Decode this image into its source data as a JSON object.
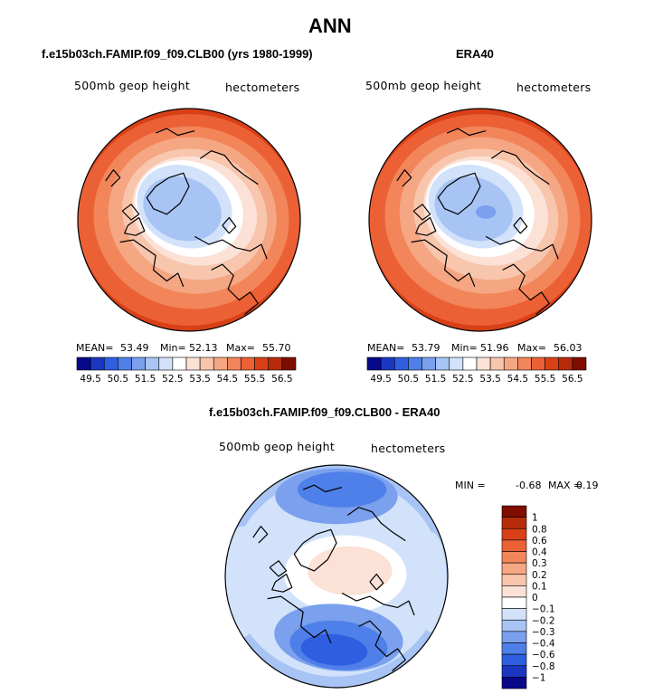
{
  "figure": {
    "title": "ANN",
    "diff_title": "f.e15b03ch.FAMIP.f09_f09.CLB00 - ERA40"
  },
  "panels": {
    "model": {
      "case_title": "f.e15b03ch.FAMIP.f09_f09.CLB00 (yrs 1980-1999)",
      "variable_label": "500mb geop height",
      "units_label": "hectometers",
      "mean_label": "MEAN=",
      "mean": "53.49",
      "min_label": "Min=",
      "min": "52.13",
      "max_label": "Max=",
      "max": "55.70"
    },
    "obs": {
      "case_title": "ERA40",
      "variable_label": "500mb geop height",
      "units_label": "hectometers",
      "mean_label": "MEAN=",
      "mean": "53.79",
      "min_label": "Min=",
      "min": "51.96",
      "max_label": "Max=",
      "max": "56.03"
    },
    "diff": {
      "variable_label": "500mb geop height",
      "units_label": "hectometers",
      "min_label": "MIN =",
      "min": "-0.68",
      "max_label": "MAX =",
      "max": "0.19"
    }
  },
  "chart_data": [
    {
      "type": "heatmap",
      "projection": "north-polar-stereographic",
      "title": "f.e15b03ch.FAMIP.f09_f09.CLB00 (yrs 1980-1999)",
      "field": "500mb geop height",
      "units": "hectometers",
      "mean": 53.49,
      "min": 52.13,
      "max": 55.7,
      "contour_levels": [
        49.5,
        50.0,
        50.5,
        51.0,
        51.5,
        52.0,
        52.5,
        53.0,
        53.5,
        54.0,
        54.5,
        55.0,
        55.5,
        56.0,
        56.5
      ],
      "colorbar_tick_labels": [
        "49.5",
        "50.5",
        "51.5",
        "52.5",
        "53.5",
        "54.5",
        "55.5",
        "56.5"
      ],
      "colors": [
        "#08088a",
        "#1a37c2",
        "#2f5fe0",
        "#4f7fe8",
        "#7aa0ee",
        "#a7c4f4",
        "#d1e2fa",
        "#ffffff",
        "#fbe1d6",
        "#f8c5ad",
        "#f5a682",
        "#f2855a",
        "#ec6035",
        "#d94018",
        "#b62c0a",
        "#7f0d00"
      ]
    },
    {
      "type": "heatmap",
      "projection": "north-polar-stereographic",
      "title": "ERA40",
      "field": "500mb geop height",
      "units": "hectometers",
      "mean": 53.79,
      "min": 51.96,
      "max": 56.03,
      "contour_levels": [
        49.5,
        50.0,
        50.5,
        51.0,
        51.5,
        52.0,
        52.5,
        53.0,
        53.5,
        54.0,
        54.5,
        55.0,
        55.5,
        56.0,
        56.5
      ],
      "colorbar_tick_labels": [
        "49.5",
        "50.5",
        "51.5",
        "52.5",
        "53.5",
        "54.5",
        "55.5",
        "56.5"
      ],
      "colors": [
        "#08088a",
        "#1a37c2",
        "#2f5fe0",
        "#4f7fe8",
        "#7aa0ee",
        "#a7c4f4",
        "#d1e2fa",
        "#ffffff",
        "#fbe1d6",
        "#f8c5ad",
        "#f5a682",
        "#f2855a",
        "#ec6035",
        "#d94018",
        "#b62c0a",
        "#7f0d00"
      ]
    },
    {
      "type": "heatmap",
      "projection": "north-polar-stereographic",
      "title": "f.e15b03ch.FAMIP.f09_f09.CLB00 - ERA40",
      "field": "500mb geop height difference",
      "units": "hectometers",
      "min": -0.68,
      "max": 0.19,
      "contour_levels": [
        "1",
        "0.8",
        "0.6",
        "0.4",
        "0.3",
        "0.2",
        "0.1",
        "0",
        "−0.1",
        "−0.2",
        "−0.3",
        "−0.4",
        "−0.6",
        "−0.8",
        "−1"
      ],
      "colors": [
        "#7f0d00",
        "#b62c0a",
        "#d94018",
        "#ec6035",
        "#f2855a",
        "#f5a682",
        "#f8c5ad",
        "#fbe1d6",
        "#ffffff",
        "#d1e2fa",
        "#a7c4f4",
        "#7aa0ee",
        "#4f7fe8",
        "#2f5fe0",
        "#1a37c2",
        "#08088a"
      ]
    }
  ]
}
